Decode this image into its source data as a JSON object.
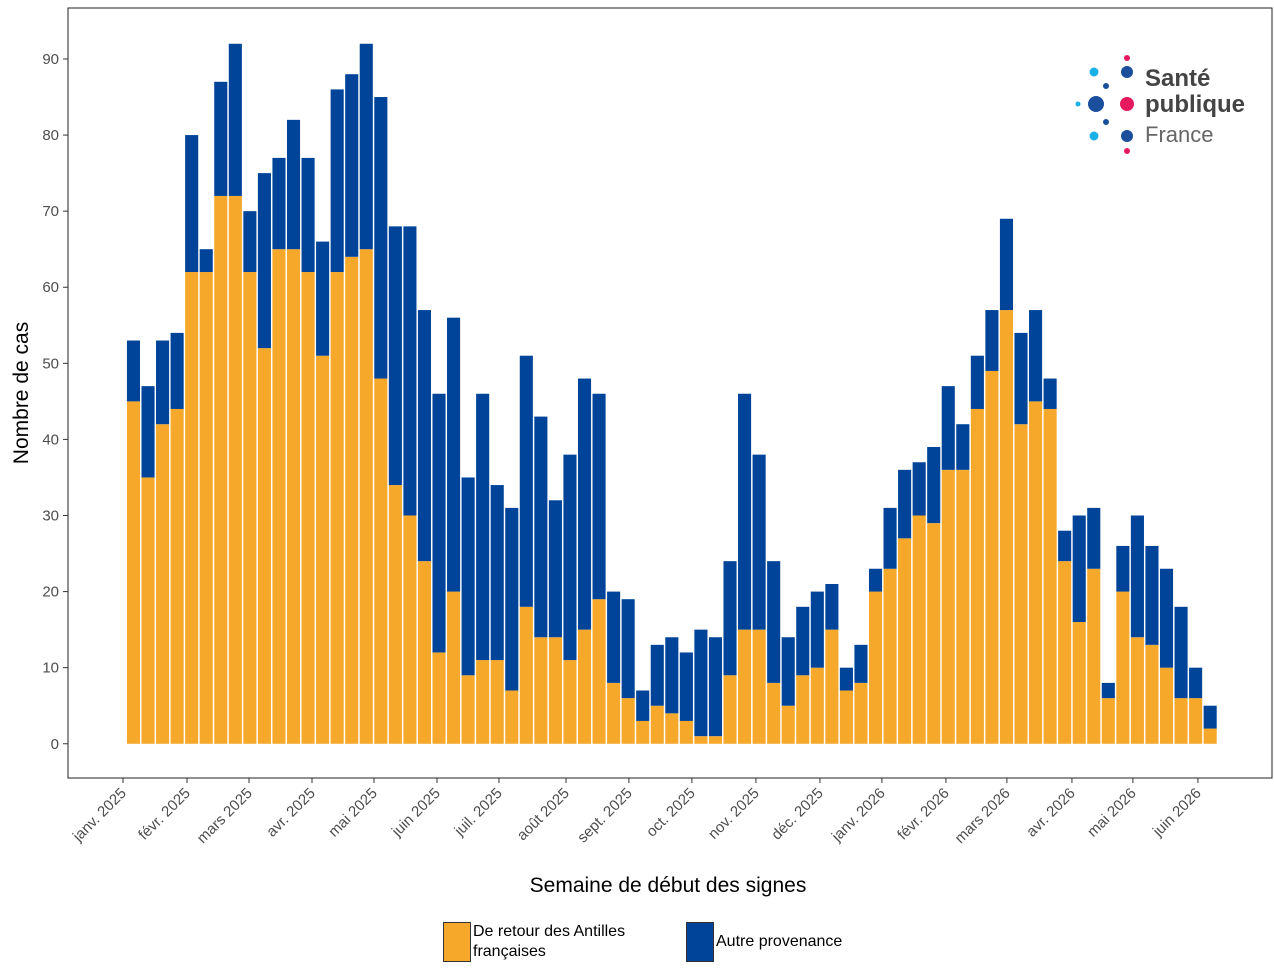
{
  "chart_data": {
    "type": "bar",
    "stacked": true,
    "x_label": "Semaine de début des signes",
    "y_label": "Nombre de cas",
    "categories": [
      null,
      null,
      null,
      null,
      null,
      null,
      null,
      null,
      null,
      null,
      null,
      null,
      null,
      null,
      null,
      null,
      null,
      null,
      null,
      null,
      null,
      null,
      null,
      null,
      null,
      null,
      null,
      null,
      null,
      null,
      null,
      null,
      null,
      null,
      null,
      null,
      null,
      null,
      null,
      null,
      null,
      null,
      null,
      null,
      null,
      null,
      null,
      null,
      null,
      null,
      null,
      null,
      null,
      null,
      null,
      null,
      null,
      null,
      null,
      null,
      null,
      null,
      null,
      null,
      null,
      null,
      null,
      null,
      null,
      null,
      null,
      null,
      null,
      null,
      null
    ],
    "series": [
      {
        "name": "De retour des Antilles françaises",
        "color": "#f6a82b",
        "values": [
          45,
          35,
          42,
          44,
          62,
          62,
          72,
          72,
          62,
          52,
          65,
          65,
          62,
          51,
          62,
          64,
          65,
          48,
          34,
          30,
          24,
          12,
          20,
          9,
          11,
          11,
          7,
          18,
          14,
          14,
          11,
          15,
          19,
          8,
          6,
          3,
          5,
          4,
          3,
          1,
          1,
          9,
          15,
          15,
          8,
          5,
          9,
          10,
          15,
          7,
          8,
          20,
          23,
          27,
          30,
          29,
          36,
          36,
          44,
          49,
          57,
          42,
          45,
          44,
          24,
          16,
          23,
          6,
          20,
          14,
          13,
          10,
          6,
          6,
          2
        ]
      },
      {
        "name": "Autre provenance",
        "color": "#00449a",
        "values": [
          8,
          12,
          11,
          10,
          18,
          3,
          15,
          20,
          8,
          23,
          12,
          17,
          15,
          15,
          24,
          24,
          27,
          37,
          34,
          38,
          33,
          34,
          36,
          26,
          35,
          23,
          24,
          33,
          29,
          18,
          27,
          33,
          27,
          12,
          13,
          4,
          8,
          10,
          9,
          14,
          13,
          15,
          31,
          23,
          16,
          9,
          9,
          10,
          6,
          3,
          5,
          3,
          8,
          9,
          7,
          10,
          11,
          6,
          7,
          8,
          12,
          12,
          12,
          4,
          4,
          14,
          8,
          2,
          6,
          16,
          13,
          13,
          12,
          4,
          3
        ]
      }
    ],
    "xlim": [
      -4.5,
      78.25
    ],
    "xticks": [
      {
        "value": -0.72,
        "label": "janv. 2025"
      },
      {
        "value": 3.68,
        "label": "févr. 2025"
      },
      {
        "value": 7.94,
        "label": "mars 2025"
      },
      {
        "value": 12.27,
        "label": "avr. 2025"
      },
      {
        "value": 16.53,
        "label": "mai 2025"
      },
      {
        "value": 20.86,
        "label": "juin 2025"
      },
      {
        "value": 25.12,
        "label": "juil. 2025"
      },
      {
        "value": 29.73,
        "label": "août 2025"
      },
      {
        "value": 34.05,
        "label": "sept. 2025"
      },
      {
        "value": 38.38,
        "label": "oct. 2025"
      },
      {
        "value": 42.78,
        "label": "nov. 2025"
      },
      {
        "value": 47.18,
        "label": "déc. 2025"
      },
      {
        "value": 51.44,
        "label": "janv. 2026"
      },
      {
        "value": 55.84,
        "label": "févr. 2026"
      },
      {
        "value": 60.03,
        "label": "mars 2026"
      },
      {
        "value": 64.5,
        "label": "avr. 2026"
      },
      {
        "value": 68.69,
        "label": "mai 2026"
      },
      {
        "value": 73.16,
        "label": "juin 2026"
      }
    ],
    "ylim": [
      -4.5,
      96.7
    ],
    "yticks": [
      0,
      10,
      20,
      30,
      40,
      50,
      60,
      70,
      80,
      90
    ],
    "grid": false,
    "legend": "bottom"
  },
  "logo": [
    "Santé",
    "publique",
    "France"
  ]
}
